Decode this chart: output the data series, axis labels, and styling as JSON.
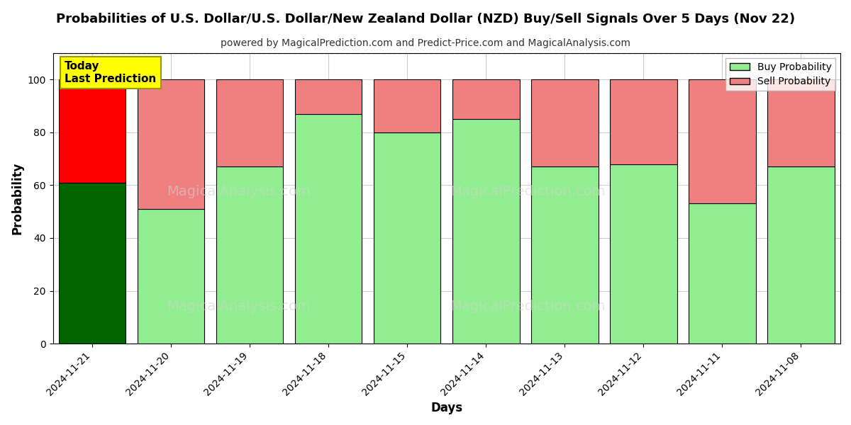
{
  "title": "Probabilities of U.S. Dollar/U.S. Dollar/New Zealand Dollar (NZD) Buy/Sell Signals Over 5 Days (Nov 22)",
  "subtitle": "powered by MagicalPrediction.com and Predict-Price.com and MagicalAnalysis.com",
  "xlabel": "Days",
  "ylabel": "Probability",
  "categories": [
    "2024-11-21",
    "2024-11-20",
    "2024-11-19",
    "2024-11-18",
    "2024-11-15",
    "2024-11-14",
    "2024-11-13",
    "2024-11-12",
    "2024-11-11",
    "2024-11-08"
  ],
  "buy_values": [
    61,
    51,
    67,
    87,
    80,
    85,
    67,
    68,
    53,
    67
  ],
  "sell_values": [
    39,
    49,
    33,
    13,
    20,
    15,
    33,
    32,
    47,
    33
  ],
  "today_buy_color": "#006400",
  "today_sell_color": "#FF0000",
  "regular_buy_color": "#90EE90",
  "regular_sell_color": "#F08080",
  "today_label_bg": "#FFFF00",
  "today_label_text": "Today\nLast Prediction",
  "legend_buy_label": "Buy Probability",
  "legend_sell_label": "Sell Probability",
  "ylim": [
    0,
    110
  ],
  "yticks": [
    0,
    20,
    40,
    60,
    80,
    100
  ],
  "dashed_line_y": 110,
  "bar_edgecolor": "#000000",
  "bar_linewidth": 0.8,
  "grid_color": "#cccccc",
  "background_color": "#ffffff",
  "title_fontsize": 13,
  "subtitle_fontsize": 10,
  "axis_label_fontsize": 12,
  "tick_fontsize": 10
}
